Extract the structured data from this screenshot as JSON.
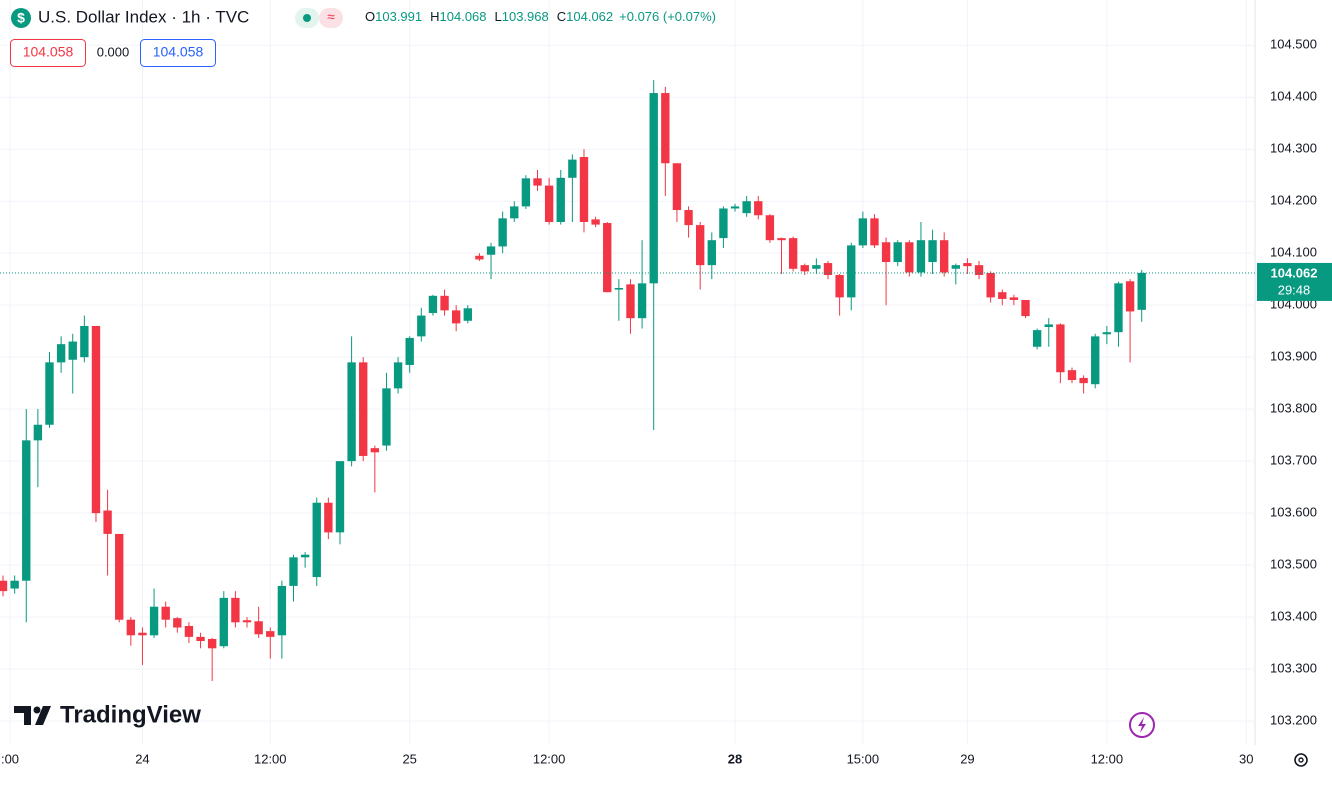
{
  "header": {
    "title": "U.S. Dollar Index · 1h · TVC",
    "ohlc_labels": [
      "O",
      "H",
      "L",
      "C"
    ],
    "change": "+0.076 (+0.07%)",
    "bid": "104.058",
    "spread": "0.000",
    "ask": "104.058",
    "countdown": "29:48"
  },
  "watermark": "TradingView",
  "chart_data": {
    "type": "candlestick",
    "up_color": "#089981",
    "down_color": "#f23645",
    "grid": true,
    "xlim": [
      -0.26,
      107.75
    ],
    "ylim": [
      103.154,
      104.587
    ],
    "xticks": [
      {
        "value": 0.6,
        "label": ":00"
      },
      {
        "value": 12,
        "label": "24"
      },
      {
        "value": 23,
        "label": "12:00"
      },
      {
        "value": 35,
        "label": "25"
      },
      {
        "value": 47,
        "label": "12:00"
      },
      {
        "value": 63,
        "label": "28",
        "bold": true
      },
      {
        "value": 74,
        "label": "15:00"
      },
      {
        "value": 83,
        "label": "29"
      },
      {
        "value": 95,
        "label": "12:00"
      },
      {
        "value": 107,
        "label": "30"
      }
    ],
    "yticks": [
      {
        "value": 103.2,
        "label": "103.200"
      },
      {
        "value": 103.3,
        "label": "103.300"
      },
      {
        "value": 103.4,
        "label": "103.400"
      },
      {
        "value": 103.5,
        "label": "103.500"
      },
      {
        "value": 103.6,
        "label": "103.600"
      },
      {
        "value": 103.7,
        "label": "103.700"
      },
      {
        "value": 103.8,
        "label": "103.800"
      },
      {
        "value": 103.9,
        "label": "103.900"
      },
      {
        "value": 104.0,
        "label": "104.000"
      },
      {
        "value": 104.1,
        "label": "104.100"
      },
      {
        "value": 104.2,
        "label": "104.200"
      },
      {
        "value": 104.3,
        "label": "104.300"
      },
      {
        "value": 104.4,
        "label": "104.400"
      },
      {
        "value": 104.5,
        "label": "104.500"
      }
    ],
    "open": [
      103.47,
      103.455,
      103.47,
      103.74,
      103.77,
      103.89,
      103.895,
      103.9,
      103.96,
      103.605,
      103.56,
      103.395,
      103.37,
      103.365,
      103.42,
      103.398,
      103.383,
      103.362,
      103.358,
      103.344,
      103.437,
      103.394,
      103.392,
      103.373,
      103.365,
      103.46,
      103.515,
      103.477,
      103.62,
      103.563,
      103.7,
      103.89,
      103.725,
      103.73,
      103.84,
      103.885,
      103.94,
      103.985,
      104.018,
      103.99,
      103.97,
      104.095,
      104.097,
      104.113,
      104.167,
      104.19,
      104.244,
      104.23,
      104.16,
      104.245,
      104.285,
      104.165,
      104.158,
      104.03,
      104.04,
      103.975,
      104.042,
      104.408,
      104.273,
      104.183,
      104.154,
      104.077,
      104.129,
      104.186,
      104.177,
      104.2,
      104.173,
      104.129,
      104.129,
      104.077,
      104.07,
      104.081,
      104.058,
      104.015,
      104.115,
      104.167,
      104.121,
      104.083,
      104.121,
      104.063,
      104.083,
      104.125,
      104.07,
      104.081,
      104.077,
      104.062,
      104.025,
      104.015,
      104.01,
      103.92,
      103.958,
      103.963,
      103.875,
      103.86,
      103.848,
      103.944,
      103.948,
      104.046,
      103.991
    ],
    "high": [
      103.48,
      103.48,
      103.8,
      103.8,
      103.91,
      103.94,
      103.945,
      103.98,
      103.96,
      103.645,
      103.56,
      103.4,
      103.38,
      103.455,
      103.43,
      103.4,
      103.39,
      103.37,
      103.36,
      103.45,
      103.45,
      103.4,
      103.42,
      103.38,
      103.47,
      103.52,
      103.525,
      103.63,
      103.63,
      103.7,
      103.94,
      103.9,
      103.73,
      103.87,
      103.9,
      103.94,
      103.995,
      104.02,
      104.03,
      104.0,
      104.0,
      104.1,
      104.12,
      104.18,
      104.2,
      104.25,
      104.26,
      104.245,
      104.26,
      104.29,
      104.3,
      104.17,
      104.16,
      104.05,
      104.05,
      104.125,
      104.433,
      104.42,
      104.273,
      104.19,
      104.16,
      104.14,
      104.19,
      104.195,
      104.21,
      104.21,
      104.175,
      104.13,
      104.132,
      104.08,
      104.09,
      104.085,
      104.06,
      104.12,
      104.18,
      104.175,
      104.13,
      104.125,
      104.125,
      104.16,
      104.145,
      104.14,
      104.08,
      104.09,
      104.085,
      104.065,
      104.03,
      104.02,
      104.01,
      103.955,
      103.975,
      103.965,
      103.88,
      103.865,
      103.945,
      103.96,
      104.045,
      104.05,
      104.068
    ],
    "low": [
      103.44,
      103.445,
      103.39,
      103.65,
      103.764,
      103.87,
      103.83,
      103.89,
      103.583,
      103.48,
      103.39,
      103.345,
      103.308,
      103.36,
      103.38,
      103.37,
      103.35,
      103.34,
      103.277,
      103.34,
      103.38,
      103.38,
      103.36,
      103.32,
      103.32,
      103.43,
      103.495,
      103.46,
      103.55,
      103.54,
      103.69,
      103.7,
      103.64,
      103.72,
      103.83,
      103.87,
      103.93,
      103.98,
      103.98,
      103.95,
      103.965,
      104.085,
      104.05,
      104.1,
      104.16,
      104.185,
      104.22,
      104.155,
      104.155,
      104.16,
      104.14,
      104.15,
      104.025,
      103.97,
      103.945,
      103.955,
      103.76,
      104.21,
      104.16,
      104.13,
      104.03,
      104.05,
      104.11,
      104.18,
      104.17,
      104.165,
      104.12,
      104.06,
      104.065,
      104.058,
      104.06,
      104.05,
      103.98,
      103.99,
      104.11,
      104.11,
      104.0,
      104.075,
      104.055,
      104.055,
      104.06,
      104.055,
      104.04,
      104.06,
      104.05,
      104.005,
      104.0,
      104.0,
      103.975,
      103.915,
      103.92,
      103.85,
      103.85,
      103.83,
      103.84,
      103.925,
      103.92,
      103.89,
      103.968
    ],
    "close": [
      103.45,
      103.47,
      103.74,
      103.77,
      103.89,
      103.925,
      103.93,
      103.96,
      103.6,
      103.56,
      103.395,
      103.365,
      103.365,
      103.42,
      103.395,
      103.38,
      103.362,
      103.354,
      103.34,
      103.437,
      103.39,
      103.39,
      103.367,
      103.362,
      103.46,
      103.515,
      103.52,
      103.62,
      103.563,
      103.7,
      103.89,
      103.71,
      103.717,
      103.84,
      103.89,
      103.937,
      103.98,
      104.018,
      103.99,
      103.965,
      103.994,
      104.088,
      104.113,
      104.167,
      104.19,
      104.244,
      104.23,
      104.16,
      104.245,
      104.28,
      104.16,
      104.155,
      104.025,
      104.033,
      103.975,
      104.042,
      104.408,
      104.273,
      104.183,
      104.154,
      104.077,
      104.125,
      104.186,
      104.19,
      104.2,
      104.173,
      104.125,
      104.125,
      104.07,
      104.065,
      104.077,
      104.058,
      104.015,
      104.115,
      104.167,
      104.115,
      104.083,
      104.121,
      104.063,
      104.125,
      104.125,
      104.063,
      104.077,
      104.075,
      104.058,
      104.015,
      104.012,
      104.01,
      103.979,
      103.952,
      103.963,
      103.871,
      103.856,
      103.85,
      103.94,
      103.948,
      104.042,
      103.988,
      104.062
    ]
  }
}
